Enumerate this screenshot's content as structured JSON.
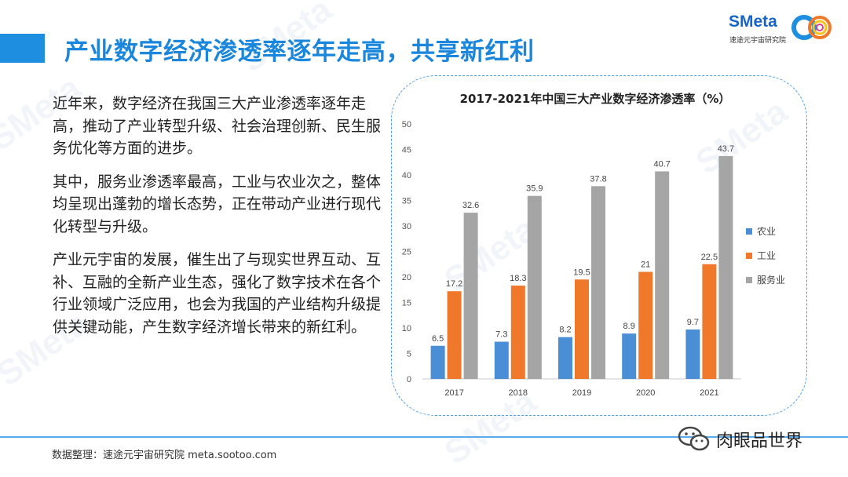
{
  "header": {
    "title": "产业数字经济渗透率逐年走高，共享新红利",
    "logo_text": "SMeta",
    "logo_subtitle": "速途元宇宙研究院"
  },
  "body": {
    "paragraphs": [
      "近年来，数字经济在我国三大产业渗透率逐年走高，推动了产业转型升级、社会治理创新、民生服务优化等方面的进步。",
      "其中，服务业渗透率最高，工业与农业次之，整体均呈现出蓬勃的增长态势，正在带动产业进行现代化转型与升级。",
      "产业元宇宙的发展，催生出了与现实世界互动、互补、互融的全新产业生态，强化了数字技术在各个行业领域广泛应用，也会为我国的产业结构升级提供关键动能，产生数字经济增长带来的新红利。"
    ]
  },
  "footer": {
    "source": "数据整理：速途元宇宙研究院 meta.sootoo.com",
    "wechat_name": "肉眼品世界"
  },
  "colors": {
    "accent": "#1a86dc",
    "agriculture": "#4a8fd6",
    "industry": "#f0782a",
    "services": "#a5a5a5"
  },
  "chart_data": {
    "type": "bar",
    "title": "2017-2021年中国三大产业数字经济渗透率（%）",
    "categories": [
      "2017",
      "2018",
      "2019",
      "2020",
      "2021"
    ],
    "series": [
      {
        "name": "农业",
        "values": [
          6.5,
          7.3,
          8.2,
          8.9,
          9.7
        ],
        "color": "#4a8fd6"
      },
      {
        "name": "工业",
        "values": [
          17.2,
          18.3,
          19.5,
          21,
          22.5
        ],
        "color": "#f0782a"
      },
      {
        "name": "服务业",
        "values": [
          32.6,
          35.9,
          37.8,
          40.7,
          43.7
        ],
        "color": "#a5a5a5"
      }
    ],
    "data_labels": [
      [
        "6.5",
        "7.3",
        "8.2",
        "8.9",
        "9.7"
      ],
      [
        "17.2",
        "18.3",
        "19.5",
        "21",
        "22.5"
      ],
      [
        "32.6",
        "35.9",
        "37.8",
        "40.7",
        "43.7"
      ]
    ],
    "yticks": [
      0,
      5,
      10,
      15,
      20,
      25,
      30,
      35,
      40,
      45,
      50
    ],
    "ylim": [
      0,
      50
    ],
    "grid": false,
    "legend_position": "right"
  }
}
